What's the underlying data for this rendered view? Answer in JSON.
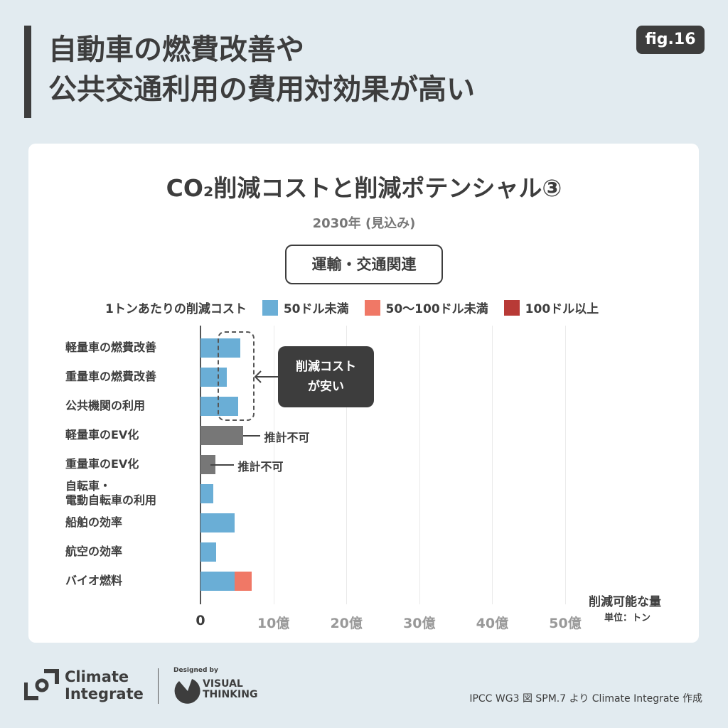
{
  "header": {
    "title_line1": "自動車の燃費改善や",
    "title_line2": "公共交通利用の費用対効果が高い",
    "fig_badge": "fig.16"
  },
  "chart_data": {
    "type": "bar",
    "orientation": "horizontal",
    "stacked": true,
    "title": "CO₂削減コストと削減ポテンシャル③",
    "subtitle": "2030年 (見込み)",
    "category_label": "運輸・交通関連",
    "legend_title": "1トンあたりの削減コスト",
    "legend": [
      {
        "name": "50ドル未満",
        "color": "#6aaed6"
      },
      {
        "name": "50〜100ドル未満",
        "color": "#f07866"
      },
      {
        "name": "100ドル以上",
        "color": "#b83a36"
      }
    ],
    "legend_position": "top",
    "categories": [
      "軽量車の燃費改善",
      "重量車の燃費改善",
      "公共機関の利用",
      "軽量車のEV化",
      "重量車のEV化",
      "自転車・\n電動自転車の利用",
      "船舶の効率",
      "航空の効率",
      "バイオ燃料"
    ],
    "series": [
      {
        "name": "50ドル未満",
        "color": "#6aaed6",
        "values": [
          5.5,
          3.6,
          5.2,
          0,
          0,
          1.8,
          4.7,
          2.1,
          4.7
        ]
      },
      {
        "name": "50〜100ドル未満",
        "color": "#f07866",
        "values": [
          0,
          0,
          0,
          0,
          0,
          0,
          0,
          0,
          2.3
        ]
      },
      {
        "name": "100ドル以上",
        "color": "#b83a36",
        "values": [
          0,
          0,
          0,
          0,
          0,
          0,
          0,
          0,
          0
        ]
      },
      {
        "name": "推計不可",
        "color": "#777777",
        "values": [
          0,
          0,
          0,
          5.8,
          2.0,
          0,
          0,
          0,
          0
        ]
      }
    ],
    "xlim": [
      0,
      50
    ],
    "xticks": [
      "0",
      "10億",
      "20億",
      "30億",
      "40億",
      "50億"
    ],
    "xlabel": "削減可能な量",
    "xunit": "単位：トン",
    "grid": true,
    "annotations": {
      "not_estimable": "推計不可",
      "callout": "削減コスト\nが安い"
    }
  },
  "footer": {
    "brand": "Climate\nIntegrate",
    "designed_by": "Designed by",
    "designer": "VISUAL\nTHINKING",
    "source": "IPCC WG3 図 SPM.7 より Climate Integrate 作成"
  }
}
